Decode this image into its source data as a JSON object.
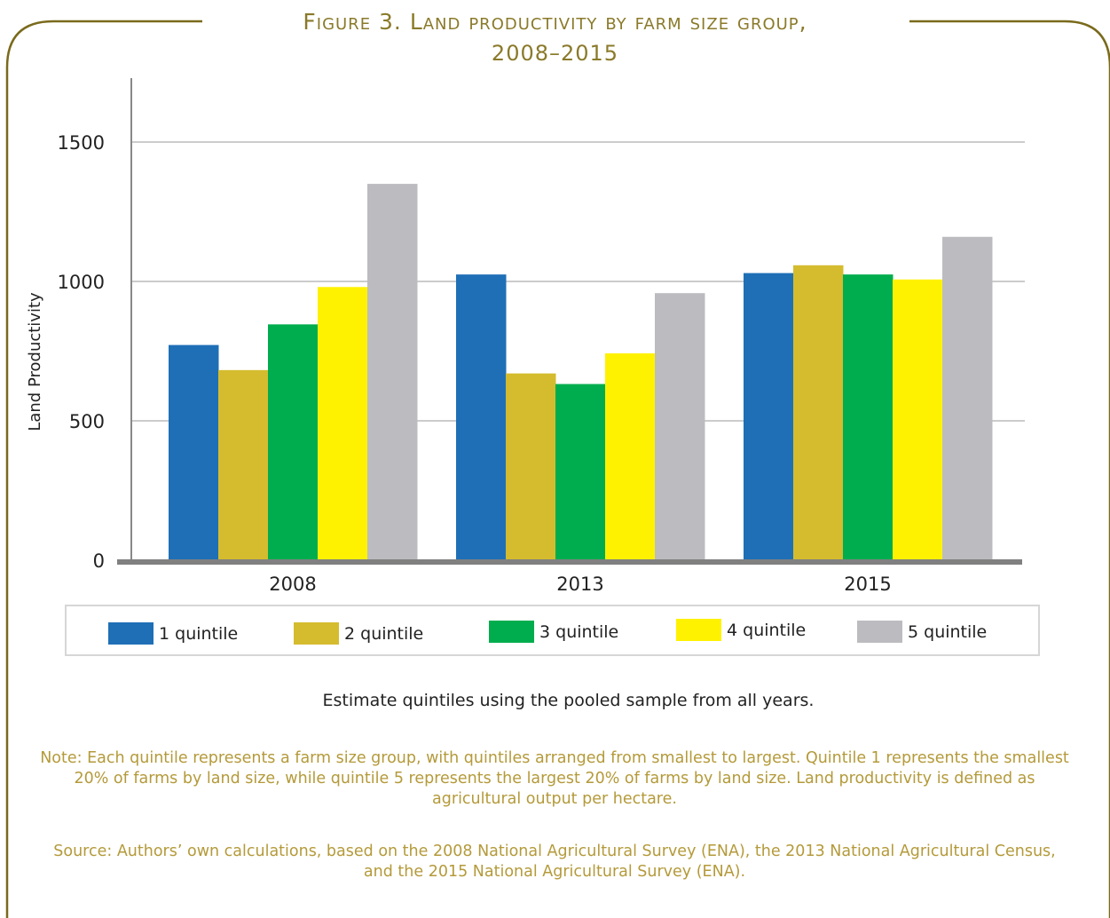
{
  "figure": {
    "title_line1": "Figure 3. Land productivity by farm size group,",
    "title_line2": "2008–2015",
    "subnote": "Estimate quintiles using the pooled sample from all years.",
    "note": "Note: Each quintile represents a farm size group, with quintiles arranged from smallest to largest. Quintile 1 represents the smallest 20% of farms by land size, while quintile 5 represents the largest 20% of farms by land size. Land productivity is defined as agricultural output per hectare.",
    "source": "Source: Authors’ own calculations, based on the 2008 National Agricultural Survey (ENA), the 2013 National Agricultural Census, and the 2015 National Agricultural Survey (ENA).",
    "frame_color": "#7a6a1c"
  },
  "chart_data": {
    "type": "bar",
    "title": "Figure 3. Land productivity by farm size group, 2008–2015",
    "xlabel": "",
    "ylabel": "Land Productivity",
    "categories": [
      "2008",
      "2013",
      "2015"
    ],
    "yticks": [
      0,
      500,
      1000,
      1500
    ],
    "ylim": [
      0,
      1500
    ],
    "grid": true,
    "legend_position": "bottom",
    "series": [
      {
        "name": "1 quintile",
        "color": "#1f6fb7",
        "values": [
          772,
          1025,
          1030
        ]
      },
      {
        "name": "2 quintile",
        "color": "#d4bc2e",
        "values": [
          682,
          670,
          1058
        ]
      },
      {
        "name": "3 quintile",
        "color": "#00ad4e",
        "values": [
          846,
          632,
          1025
        ]
      },
      {
        "name": "4 quintile",
        "color": "#fff200",
        "values": [
          980,
          742,
          1007
        ]
      },
      {
        "name": "5 quintile",
        "color": "#bcbcc0",
        "values": [
          1350,
          958,
          1160
        ]
      }
    ]
  }
}
